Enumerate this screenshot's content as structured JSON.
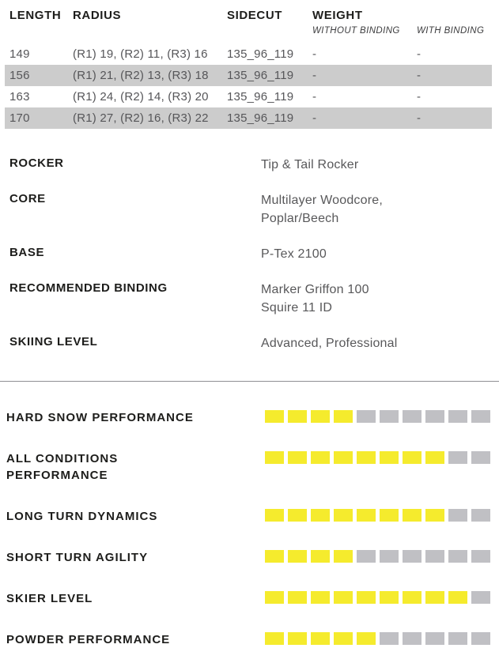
{
  "table": {
    "headers": {
      "length": "LENGTH",
      "radius": "RADIUS",
      "sidecut": "SIDECUT",
      "weight": "WEIGHT",
      "weight_sub_without": "WITHOUT BINDING",
      "weight_sub_with": "WITH BINDING"
    },
    "rows": [
      {
        "length": "149",
        "radius": "(R1) 19, (R2) 11, (R3) 16",
        "sidecut": "135_96_119",
        "weight_without": "-",
        "weight_with": "-"
      },
      {
        "length": "156",
        "radius": "(R1) 21, (R2) 13, (R3) 18",
        "sidecut": "135_96_119",
        "weight_without": "-",
        "weight_with": "-"
      },
      {
        "length": "163",
        "radius": "(R1) 24, (R2) 14, (R3) 20",
        "sidecut": "135_96_119",
        "weight_without": "-",
        "weight_with": "-"
      },
      {
        "length": "170",
        "radius": "(R1) 27, (R2) 16, (R3) 22",
        "sidecut": "135_96_119",
        "weight_without": "-",
        "weight_with": "-"
      }
    ]
  },
  "specs": [
    {
      "label": "ROCKER",
      "value_lines": [
        "Tip & Tail Rocker"
      ]
    },
    {
      "label": "CORE",
      "value_lines": [
        "Multilayer Woodcore,",
        "Poplar/Beech"
      ]
    },
    {
      "label": "BASE",
      "value_lines": [
        "P-Tex 2100"
      ]
    },
    {
      "label": "RECOMMENDED BINDING",
      "value_lines": [
        "Marker Griffon 100",
        "Squire 11 ID"
      ]
    },
    {
      "label": "SKIING LEVEL",
      "value_lines": [
        "Advanced, Professional"
      ]
    }
  ],
  "ratings": {
    "max": 10,
    "items": [
      {
        "label_lines": [
          "HARD SNOW PERFORMANCE"
        ],
        "value": 4
      },
      {
        "label_lines": [
          "ALL CONDITIONS",
          "PERFORMANCE"
        ],
        "value": 8
      },
      {
        "label_lines": [
          "LONG TURN DYNAMICS"
        ],
        "value": 8
      },
      {
        "label_lines": [
          "SHORT TURN AGILITY"
        ],
        "value": 4
      },
      {
        "label_lines": [
          "SKIER LEVEL"
        ],
        "value": 9
      },
      {
        "label_lines": [
          "POWDER PERFORMANCE"
        ],
        "value": 5
      }
    ]
  },
  "colors": {
    "accent_yellow": "#f5eb2d",
    "segment_gray": "#c0c0c4",
    "row_stripe": "#cccccc",
    "label_black": "#1d1d1b",
    "value_gray": "#58585a",
    "divider_gray": "#8f8f93"
  }
}
